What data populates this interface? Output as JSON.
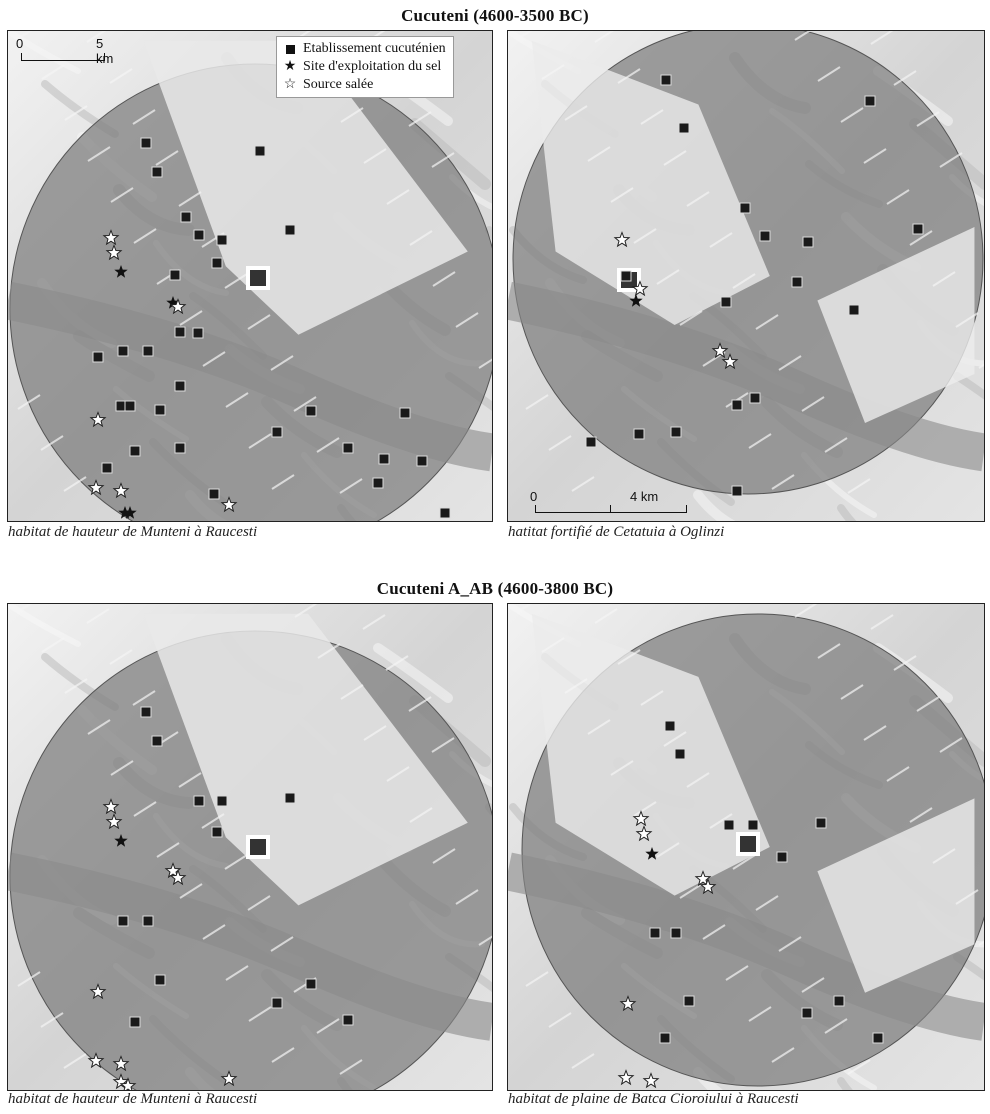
{
  "sections": [
    {
      "title": "Cucuteni (4600-3500 BC)"
    },
    {
      "title": "Cucuteni A_AB (4600-3800 BC)"
    }
  ],
  "legend": {
    "settlement": "Etablissement cucuténien",
    "salt_site": "Site d'exploitation du sel",
    "salt_source": "Source salée",
    "salt_site_icon": "filled-star-icon",
    "salt_source_icon": "outline-star-icon",
    "settlement_icon": "filled-square-icon"
  },
  "scale_bars": {
    "panel1": {
      "zero": "0",
      "end": "5 km"
    },
    "panel2": {
      "zero": "0",
      "end": "4 km"
    }
  },
  "panels": [
    {
      "caption": "habitat de hauteur de Munteni à Raucesti"
    },
    {
      "caption": "hatitat fortifié de Cetatuia à Oglinzi"
    },
    {
      "caption": "habitat de hauteur de Munteni à Raucesti"
    },
    {
      "caption": "habitat de plaine de Batca Cioroiului à Raucesti"
    }
  ],
  "colors": {
    "settlement": "#1a1a1a",
    "buffer": "#7a7a7a",
    "relief_light": "#e6e6e6"
  }
}
